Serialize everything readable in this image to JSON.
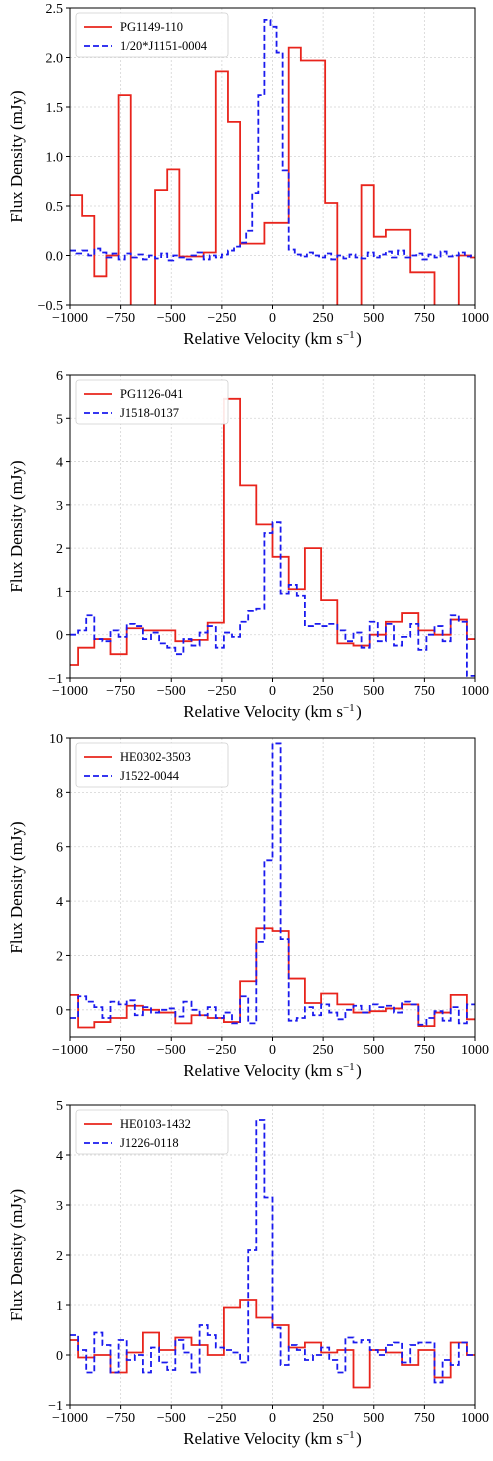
{
  "chart_data": [
    {
      "type": "line",
      "xlabel": "Relative Velocity (km s$^{-1}$)",
      "ylabel": "Flux Density (mJy)",
      "xlim": [
        -1000,
        1000
      ],
      "ylim": [
        -0.5,
        2.5
      ],
      "xticks": [
        -1000,
        -750,
        -500,
        -250,
        0,
        250,
        500,
        750,
        1000
      ],
      "yticks": [
        -0.5,
        0.0,
        0.5,
        1.0,
        1.5,
        2.0,
        2.5
      ],
      "ytick_decimals": 1,
      "grid": true,
      "legend_position": "upper-left",
      "series": [
        {
          "name": "PG1149-110",
          "color": "#e8241c",
          "style": "solid",
          "x": [
            -1000,
            -940,
            -880,
            -820,
            -760,
            -700,
            -640,
            -580,
            -520,
            -460,
            -400,
            -340,
            -280,
            -220,
            -160,
            -100,
            -40,
            20,
            80,
            140,
            200,
            260,
            320,
            380,
            440,
            500,
            560,
            620,
            680,
            740,
            800,
            860,
            920,
            980
          ],
          "y": [
            0.61,
            0.4,
            -0.21,
            0.0,
            1.62,
            -0.6,
            -0.6,
            0.66,
            0.87,
            -0.01,
            -0.01,
            0.03,
            1.86,
            1.35,
            0.12,
            0.12,
            0.33,
            0.33,
            2.1,
            1.97,
            1.97,
            0.53,
            -0.6,
            -0.6,
            0.71,
            0.19,
            0.26,
            0.26,
            -0.17,
            -0.17,
            -0.6,
            -0.6,
            0.0,
            -0.02
          ]
        },
        {
          "name": "1/20*J1151-0004",
          "color": "#1a1aee",
          "style": "dashed",
          "x": [
            -1000,
            -970,
            -940,
            -910,
            -880,
            -850,
            -820,
            -790,
            -760,
            -730,
            -700,
            -670,
            -640,
            -610,
            -580,
            -550,
            -520,
            -490,
            -460,
            -430,
            -400,
            -370,
            -340,
            -310,
            -280,
            -250,
            -220,
            -190,
            -160,
            -130,
            -100,
            -70,
            -40,
            -10,
            20,
            50,
            80,
            110,
            140,
            170,
            200,
            230,
            260,
            290,
            320,
            350,
            380,
            410,
            440,
            470,
            500,
            530,
            560,
            590,
            620,
            650,
            680,
            710,
            740,
            770,
            800,
            830,
            860,
            890,
            920,
            950,
            980
          ],
          "y": [
            0.05,
            0.02,
            0.05,
            0.0,
            0.07,
            0.03,
            -0.02,
            0.02,
            -0.04,
            0.02,
            -0.02,
            0.01,
            -0.04,
            0.0,
            -0.03,
            0.02,
            -0.05,
            0.0,
            -0.02,
            -0.04,
            0.0,
            0.03,
            -0.04,
            0.0,
            -0.02,
            0.01,
            0.05,
            0.09,
            0.13,
            0.25,
            0.63,
            1.62,
            2.38,
            2.31,
            2.05,
            0.86,
            0.06,
            0.01,
            -0.01,
            0.03,
            0.0,
            -0.02,
            0.02,
            -0.04,
            0.0,
            -0.03,
            0.01,
            -0.02,
            -0.03,
            0.03,
            -0.02,
            0.01,
            0.04,
            -0.02,
            0.05,
            -0.02,
            0.0,
            0.02,
            -0.04,
            0.01,
            -0.02,
            0.04,
            -0.01,
            0.0,
            0.03,
            -0.01,
            0.0
          ]
        }
      ]
    },
    {
      "type": "line",
      "xlabel": "Relative Velocity (km s$^{-1}$)",
      "ylabel": "Flux Density (mJy)",
      "xlim": [
        -1000,
        1000
      ],
      "ylim": [
        -1,
        6
      ],
      "xticks": [
        -1000,
        -750,
        -500,
        -250,
        0,
        250,
        500,
        750,
        1000
      ],
      "yticks": [
        -1,
        0,
        1,
        2,
        3,
        4,
        5,
        6
      ],
      "ytick_decimals": 0,
      "grid": true,
      "legend_position": "upper-left",
      "series": [
        {
          "name": "PG1126-041",
          "color": "#e8241c",
          "style": "solid",
          "x": [
            -1000,
            -960,
            -880,
            -800,
            -720,
            -640,
            -560,
            -480,
            -400,
            -320,
            -240,
            -160,
            -80,
            0,
            80,
            160,
            240,
            320,
            400,
            480,
            560,
            640,
            720,
            800,
            880,
            960
          ],
          "y": [
            -0.7,
            -0.3,
            -0.1,
            -0.45,
            0.15,
            0.1,
            0.1,
            -0.15,
            -0.12,
            0.28,
            5.45,
            3.45,
            2.55,
            1.8,
            1.05,
            2.0,
            0.8,
            -0.2,
            -0.25,
            0.0,
            0.3,
            0.5,
            0.1,
            0.0,
            0.35,
            -0.1
          ]
        },
        {
          "name": "J1518-0137",
          "color": "#1a1aee",
          "style": "dashed",
          "x": [
            -1000,
            -960,
            -920,
            -880,
            -840,
            -800,
            -760,
            -720,
            -680,
            -640,
            -600,
            -560,
            -520,
            -480,
            -440,
            -400,
            -360,
            -320,
            -280,
            -240,
            -200,
            -160,
            -120,
            -80,
            -40,
            0,
            40,
            80,
            120,
            160,
            200,
            240,
            280,
            320,
            360,
            400,
            440,
            480,
            520,
            560,
            600,
            640,
            680,
            720,
            760,
            800,
            840,
            880,
            920,
            960
          ],
          "y": [
            0.0,
            0.1,
            0.45,
            -0.1,
            -0.15,
            0.1,
            -0.05,
            0.25,
            0.2,
            -0.1,
            0.05,
            -0.2,
            -0.3,
            -0.45,
            -0.1,
            -0.25,
            0.05,
            0.2,
            -0.3,
            0.05,
            -0.05,
            0.3,
            0.55,
            0.6,
            2.35,
            2.6,
            0.95,
            1.15,
            0.9,
            0.2,
            0.25,
            0.2,
            0.25,
            0.1,
            -0.15,
            0.05,
            -0.3,
            0.3,
            -0.15,
            0.25,
            -0.25,
            -0.05,
            0.25,
            -0.35,
            0.0,
            0.2,
            -0.15,
            0.45,
            0.3,
            -0.95
          ]
        }
      ]
    },
    {
      "type": "line",
      "xlabel": "Relative Velocity (km s$^{-1}$)",
      "ylabel": "Flux Density (mJy)",
      "xlim": [
        -1000,
        1000
      ],
      "ylim": [
        -1,
        10
      ],
      "xticks": [
        -1000,
        -750,
        -500,
        -250,
        0,
        250,
        500,
        750,
        1000
      ],
      "yticks": [
        0,
        2,
        4,
        6,
        8,
        10
      ],
      "ytick_decimals": 0,
      "grid": true,
      "legend_position": "upper-left",
      "series": [
        {
          "name": "HE0302-3503",
          "color": "#e8241c",
          "style": "solid",
          "x": [
            -1000,
            -960,
            -880,
            -800,
            -720,
            -640,
            -560,
            -480,
            -400,
            -320,
            -240,
            -160,
            -80,
            0,
            80,
            160,
            240,
            320,
            400,
            480,
            560,
            640,
            720,
            800,
            880,
            960
          ],
          "y": [
            0.55,
            -0.65,
            -0.45,
            -0.3,
            0.15,
            0.0,
            -0.1,
            -0.5,
            -0.2,
            -0.3,
            -0.45,
            1.05,
            3.0,
            2.9,
            1.15,
            0.25,
            0.6,
            0.2,
            -0.1,
            -0.05,
            0.05,
            0.2,
            -0.6,
            -0.1,
            0.55,
            -0.35
          ]
        },
        {
          "name": "J1522-0044",
          "color": "#1a1aee",
          "style": "dashed",
          "x": [
            -1000,
            -960,
            -920,
            -880,
            -840,
            -800,
            -760,
            -720,
            -680,
            -640,
            -600,
            -560,
            -520,
            -480,
            -440,
            -400,
            -360,
            -320,
            -280,
            -240,
            -200,
            -160,
            -120,
            -80,
            -40,
            0,
            40,
            80,
            120,
            160,
            200,
            240,
            280,
            320,
            360,
            400,
            440,
            480,
            520,
            560,
            600,
            640,
            680,
            720,
            760,
            800,
            840,
            880,
            920,
            960
          ],
          "y": [
            -0.3,
            0.5,
            0.3,
            0.1,
            -0.3,
            0.3,
            0.2,
            0.35,
            -0.2,
            0.1,
            -0.1,
            0.0,
            0.05,
            -0.25,
            0.3,
            0.0,
            -0.2,
            0.1,
            -0.3,
            -0.1,
            -0.5,
            0.5,
            -0.5,
            2.5,
            5.5,
            9.8,
            2.6,
            -0.4,
            -0.3,
            0.1,
            -0.2,
            0.2,
            -0.1,
            -0.35,
            0.0,
            0.15,
            -0.1,
            0.2,
            0.1,
            0.15,
            -0.1,
            0.3,
            0.2,
            -0.55,
            -0.3,
            -0.05,
            -0.4,
            0.1,
            -0.5,
            0.2
          ]
        }
      ]
    },
    {
      "type": "line",
      "xlabel": "Relative Velocity (km s$^{-1}$)",
      "ylabel": "Flux Density (mJy)",
      "xlim": [
        -1000,
        1000
      ],
      "ylim": [
        -1,
        5
      ],
      "xticks": [
        -1000,
        -750,
        -500,
        -250,
        0,
        250,
        500,
        750,
        1000
      ],
      "yticks": [
        -1,
        0,
        1,
        2,
        3,
        4,
        5
      ],
      "ytick_decimals": 0,
      "grid": true,
      "legend_position": "upper-left",
      "series": [
        {
          "name": "HE0103-1432",
          "color": "#e8241c",
          "style": "solid",
          "x": [
            -1000,
            -960,
            -880,
            -800,
            -720,
            -640,
            -560,
            -480,
            -400,
            -320,
            -240,
            -160,
            -80,
            0,
            80,
            160,
            240,
            320,
            400,
            480,
            560,
            640,
            720,
            800,
            880,
            960
          ],
          "y": [
            0.3,
            -0.05,
            0.0,
            -0.35,
            0.05,
            0.45,
            0.1,
            0.35,
            0.2,
            0.0,
            0.95,
            1.1,
            0.75,
            0.6,
            0.15,
            0.25,
            0.05,
            0.1,
            -0.65,
            0.1,
            0.05,
            -0.2,
            0.1,
            -0.45,
            0.25,
            0.0
          ]
        },
        {
          "name": "J1226-0118",
          "color": "#1a1aee",
          "style": "dashed",
          "x": [
            -1000,
            -960,
            -920,
            -880,
            -840,
            -800,
            -760,
            -720,
            -680,
            -640,
            -600,
            -560,
            -520,
            -480,
            -440,
            -400,
            -360,
            -320,
            -280,
            -240,
            -200,
            -160,
            -120,
            -80,
            -40,
            0,
            40,
            80,
            120,
            160,
            200,
            240,
            280,
            320,
            360,
            400,
            440,
            480,
            520,
            560,
            600,
            640,
            680,
            720,
            760,
            800,
            840,
            880,
            920,
            960
          ],
          "y": [
            0.4,
            0.1,
            -0.35,
            0.45,
            0.2,
            -0.35,
            0.3,
            -0.1,
            0.0,
            -0.35,
            0.15,
            -0.15,
            -0.3,
            0.3,
            0.05,
            -0.35,
            0.6,
            0.4,
            0.15,
            0.1,
            0.05,
            -0.15,
            2.1,
            4.7,
            3.15,
            0.55,
            -0.2,
            0.2,
            0.1,
            -0.1,
            0.0,
            0.15,
            -0.1,
            -0.35,
            0.35,
            0.25,
            0.3,
            0.1,
            0.0,
            0.2,
            0.25,
            -0.15,
            0.2,
            0.25,
            0.25,
            -0.55,
            -0.1,
            -0.2,
            0.25,
            0.0
          ]
        }
      ]
    }
  ]
}
